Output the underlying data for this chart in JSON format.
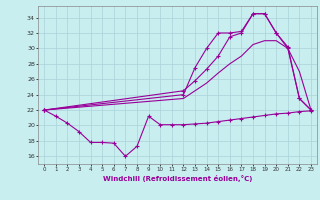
{
  "xlabel": "Windchill (Refroidissement éolien,°C)",
  "x_ticks": [
    0,
    1,
    2,
    3,
    4,
    5,
    6,
    7,
    8,
    9,
    10,
    11,
    12,
    13,
    14,
    15,
    16,
    17,
    18,
    19,
    20,
    21,
    22,
    23
  ],
  "y_ticks": [
    16,
    18,
    20,
    22,
    24,
    26,
    28,
    30,
    32,
    34
  ],
  "xlim": [
    -0.5,
    23.5
  ],
  "ylim": [
    15.0,
    35.5
  ],
  "background_color": "#c8eef0",
  "grid_color": "#aad4d8",
  "line_color": "#990099",
  "series": [
    {
      "name": "min_wavy",
      "x": [
        0,
        1,
        2,
        3,
        4,
        5,
        6,
        7,
        8,
        9,
        10,
        11,
        12,
        13,
        14,
        15,
        16,
        17,
        18,
        19,
        20,
        21,
        22,
        23
      ],
      "y": [
        22,
        21.2,
        20.3,
        19.2,
        17.8,
        17.8,
        17.7,
        16.0,
        17.3,
        21.2,
        20.1,
        20.1,
        20.1,
        20.2,
        20.3,
        20.5,
        20.7,
        20.9,
        21.1,
        21.3,
        21.5,
        21.6,
        21.8,
        21.9
      ],
      "marker": true
    },
    {
      "name": "lower_diagonal",
      "x": [
        0,
        12,
        13,
        14,
        15,
        16,
        17,
        18,
        19,
        20,
        21,
        22,
        23
      ],
      "y": [
        22,
        23.5,
        24.5,
        25.5,
        26.8,
        28.0,
        29.0,
        30.5,
        31.0,
        31.0,
        30.0,
        27.0,
        22
      ],
      "marker": false
    },
    {
      "name": "mid_diagonal",
      "x": [
        0,
        12,
        13,
        14,
        15,
        16,
        17,
        18,
        19,
        20,
        21,
        22,
        23
      ],
      "y": [
        22,
        24.5,
        25.8,
        27.3,
        29.0,
        31.5,
        32.0,
        34.5,
        34.5,
        32.0,
        30.2,
        23.5,
        22
      ],
      "marker": true
    },
    {
      "name": "upper_jagged",
      "x": [
        0,
        12,
        13,
        14,
        15,
        16,
        17,
        18,
        19,
        20,
        21,
        22,
        23
      ],
      "y": [
        22,
        24.0,
        27.5,
        30.0,
        32.0,
        32.0,
        32.2,
        34.5,
        34.5,
        32.0,
        30.0,
        23.5,
        22
      ],
      "marker": true
    }
  ]
}
